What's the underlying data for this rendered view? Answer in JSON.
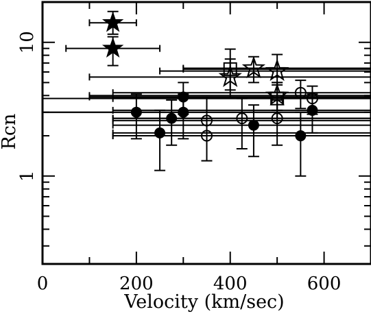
{
  "chart_data": {
    "type": "scatter",
    "title": "",
    "xlabel": "Velocity (km/sec)",
    "ylabel": "Rcn",
    "xlim": [
      0,
      700
    ],
    "ylim": [
      0.22,
      20
    ],
    "yscale": "log",
    "x_ticks": [
      0,
      200,
      400,
      600
    ],
    "x_tick_labels": [
      "0",
      "200",
      "400",
      "600"
    ],
    "y_ticks": [
      1,
      10
    ],
    "y_tick_labels": [
      "1",
      "10"
    ],
    "grid": false,
    "legend": "none",
    "series": [
      {
        "marker": "filled-star",
        "points": [
          {
            "x": 150,
            "y": 14.0,
            "xerr": [
              100,
              200
            ],
            "yerr": [
              11.5,
              17.0
            ]
          },
          {
            "x": 150,
            "y": 9.0,
            "xerr": [
              50,
              250
            ],
            "yerr": [
              6.7,
              11.0
            ]
          }
        ]
      },
      {
        "marker": "open-star",
        "points": [
          {
            "x": 400,
            "y": 5.5,
            "xerr": [
              100,
              700
            ],
            "yerr": [
              3.9,
              7.5
            ]
          },
          {
            "x": 450,
            "y": 6.4,
            "xerr": [
              300,
              700
            ],
            "yerr": [
              5.0,
              7.8
            ]
          },
          {
            "x": 500,
            "y": 6.1,
            "xerr": [
              250,
              700
            ],
            "yerr": [
              4.8,
              8.1
            ]
          },
          {
            "x": 500,
            "y": 4.0,
            "xerr": [
              100,
              700
            ],
            "yerr": [
              3.1,
              5.0
            ]
          }
        ]
      },
      {
        "marker": "open-square",
        "points": [
          {
            "x": 400,
            "y": 6.3,
            "xerr": [
              300,
              700
            ],
            "yerr": [
              4.4,
              8.9
            ]
          },
          {
            "x": 500,
            "y": 3.8,
            "xerr": [
              0,
              700
            ],
            "yerr": [
              2.7,
              5.0
            ]
          }
        ]
      },
      {
        "marker": "filled-circle",
        "points": [
          {
            "x": 200,
            "y": 3.0,
            "xerr": [
              0,
              700
            ],
            "yerr": [
              1.9,
              4.1
            ]
          },
          {
            "x": 250,
            "y": 2.1,
            "xerr": [
              150,
              700
            ],
            "yerr": [
              1.1,
              3.1
            ]
          },
          {
            "x": 275,
            "y": 2.7,
            "xerr": [
              150,
              700
            ],
            "yerr": [
              1.7,
              3.7
            ]
          },
          {
            "x": 300,
            "y": 3.9,
            "xerr": [
              100,
              700
            ],
            "yerr": [
              2.9,
              5.0
            ]
          },
          {
            "x": 300,
            "y": 3.0,
            "xerr": [
              0,
              700
            ],
            "yerr": [
              1.9,
              4.1
            ]
          },
          {
            "x": 450,
            "y": 2.4,
            "xerr": [
              150,
              700
            ],
            "yerr": [
              1.4,
              3.4
            ]
          },
          {
            "x": 550,
            "y": 2.0,
            "xerr": [
              150,
              700
            ],
            "yerr": [
              1.0,
              3.0
            ]
          },
          {
            "x": 575,
            "y": 3.1,
            "xerr": [
              150,
              700
            ],
            "yerr": [
              2.1,
              4.1
            ]
          }
        ]
      },
      {
        "marker": "open-circle",
        "points": [
          {
            "x": 350,
            "y": 2.6,
            "xerr": [
              150,
              700
            ],
            "yerr": [
              1.3,
              3.9
            ]
          },
          {
            "x": 350,
            "y": 2.0,
            "xerr": [
              150,
              700
            ],
            "yerr": [
              1.3,
              2.7
            ]
          },
          {
            "x": 425,
            "y": 2.7,
            "xerr": [
              150,
              700
            ],
            "yerr": [
              1.6,
              3.8
            ]
          },
          {
            "x": 500,
            "y": 2.7,
            "xerr": [
              150,
              700
            ],
            "yerr": [
              1.7,
              3.7
            ]
          },
          {
            "x": 550,
            "y": 4.2,
            "xerr": [
              150,
              700
            ],
            "yerr": [
              3.2,
              5.2
            ]
          },
          {
            "x": 575,
            "y": 3.8,
            "xerr": [
              150,
              700
            ],
            "yerr": [
              2.9,
              4.7
            ]
          }
        ]
      }
    ]
  }
}
